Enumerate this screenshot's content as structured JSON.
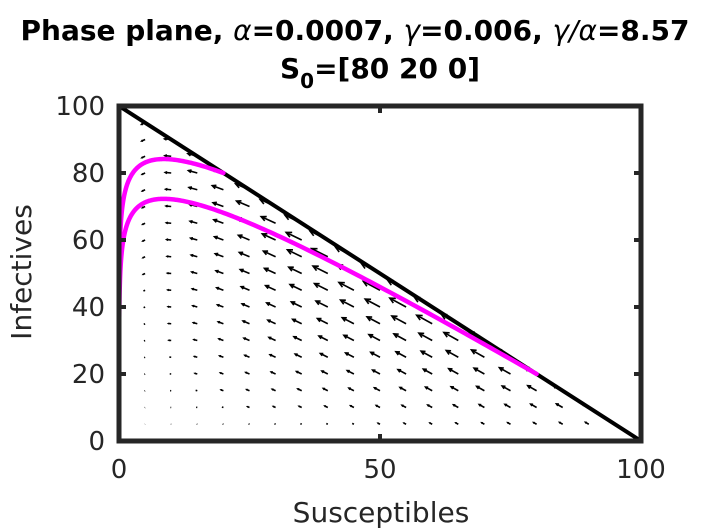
{
  "chart_data": {
    "type": "line",
    "title": {
      "line1_prefix": "Phase plane, ",
      "alpha_sym": "α",
      "alpha_val": "=0.0007, ",
      "gamma_sym": "γ",
      "gamma_val": "=0.006, ",
      "ratio_sym": "γ/α",
      "ratio_val": "=8.57",
      "line2_s": "S",
      "line2_sub": "0",
      "line2_val": "=[80  20   0]"
    },
    "xlabel": "Susceptibles",
    "ylabel": "Infectives",
    "xlim": [
      0,
      100
    ],
    "ylim": [
      0,
      100
    ],
    "xticks": [
      0,
      50,
      100
    ],
    "yticks": [
      0,
      20,
      40,
      60,
      80,
      100
    ],
    "grid": false,
    "params": {
      "alpha": 0.0007,
      "gamma": 0.006
    },
    "boundary_line": {
      "x": [
        0,
        100
      ],
      "y": [
        100,
        0
      ]
    },
    "series": [
      {
        "start": [
          80,
          20
        ]
      },
      {
        "start": [
          20,
          80
        ]
      },
      {
        "start": [
          0,
          100
        ]
      }
    ],
    "quiver": {
      "grid_x": [
        5,
        10,
        15,
        20,
        25,
        30,
        35,
        40,
        45,
        50,
        55,
        60,
        65,
        70,
        75,
        80,
        85,
        90,
        95
      ],
      "grid_y": [
        5,
        10,
        15,
        20,
        25,
        30,
        35,
        40,
        45,
        50,
        55,
        60,
        65,
        70,
        75,
        80,
        85,
        90,
        95
      ]
    },
    "colors": {
      "trajectory": "#ff00ff",
      "boundary": "#000000",
      "arrows": "#000000",
      "axes": "#262626"
    }
  }
}
